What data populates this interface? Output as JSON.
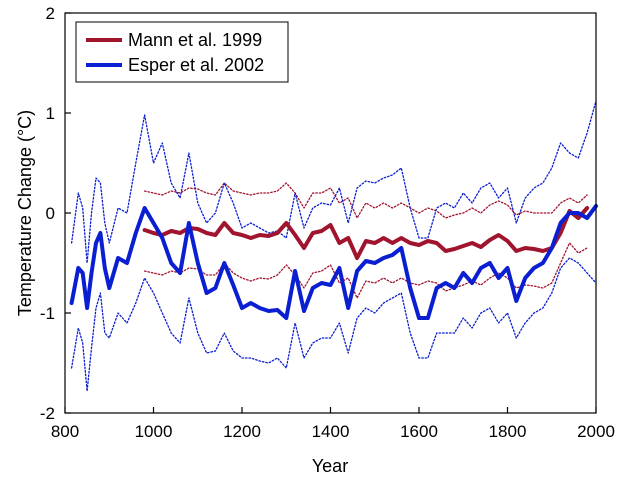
{
  "chart_data": {
    "type": "line",
    "xlabel": "Year",
    "ylabel": "Temperature Change (°C)",
    "xlim": [
      800,
      2000
    ],
    "ylim": [
      -2,
      2
    ],
    "x_ticks": [
      800,
      1000,
      1200,
      1400,
      1600,
      1800,
      2000
    ],
    "y_ticks": [
      -2,
      -1,
      0,
      1,
      2
    ],
    "grid": false,
    "legend_position": "top-left",
    "series": [
      {
        "name": "Mann et al. 1999",
        "color": "#a0142e",
        "style": "solid",
        "x": [
          980,
          1000,
          1020,
          1040,
          1060,
          1080,
          1100,
          1120,
          1140,
          1160,
          1180,
          1200,
          1220,
          1240,
          1260,
          1280,
          1300,
          1320,
          1340,
          1360,
          1380,
          1400,
          1420,
          1440,
          1460,
          1480,
          1500,
          1520,
          1540,
          1560,
          1580,
          1600,
          1620,
          1640,
          1660,
          1680,
          1700,
          1720,
          1740,
          1760,
          1780,
          1800,
          1820,
          1840,
          1860,
          1880,
          1900,
          1920,
          1940,
          1960,
          1980
        ],
        "y": [
          -0.17,
          -0.2,
          -0.22,
          -0.18,
          -0.2,
          -0.15,
          -0.16,
          -0.2,
          -0.22,
          -0.1,
          -0.2,
          -0.22,
          -0.25,
          -0.22,
          -0.23,
          -0.2,
          -0.1,
          -0.22,
          -0.35,
          -0.2,
          -0.18,
          -0.12,
          -0.3,
          -0.25,
          -0.45,
          -0.28,
          -0.3,
          -0.25,
          -0.3,
          -0.25,
          -0.3,
          -0.32,
          -0.28,
          -0.3,
          -0.38,
          -0.36,
          -0.33,
          -0.3,
          -0.34,
          -0.27,
          -0.22,
          -0.28,
          -0.38,
          -0.35,
          -0.36,
          -0.38,
          -0.35,
          -0.2,
          0.02,
          -0.05,
          0.05
        ]
      },
      {
        "name": "Esper et al. 2002",
        "color": "#0a1ed2",
        "style": "solid",
        "x": [
          815,
          830,
          840,
          850,
          860,
          870,
          880,
          890,
          900,
          920,
          940,
          960,
          980,
          1000,
          1020,
          1040,
          1060,
          1080,
          1100,
          1120,
          1140,
          1160,
          1180,
          1200,
          1220,
          1240,
          1260,
          1280,
          1300,
          1320,
          1340,
          1360,
          1380,
          1400,
          1420,
          1440,
          1460,
          1480,
          1500,
          1520,
          1540,
          1560,
          1580,
          1600,
          1620,
          1640,
          1660,
          1680,
          1700,
          1720,
          1740,
          1760,
          1780,
          1800,
          1820,
          1840,
          1860,
          1880,
          1900,
          1920,
          1940,
          1960,
          1980,
          2000
        ],
        "y": [
          -0.9,
          -0.55,
          -0.6,
          -0.95,
          -0.6,
          -0.3,
          -0.2,
          -0.55,
          -0.75,
          -0.45,
          -0.5,
          -0.2,
          0.05,
          -0.1,
          -0.25,
          -0.5,
          -0.6,
          -0.1,
          -0.5,
          -0.8,
          -0.75,
          -0.5,
          -0.72,
          -0.95,
          -0.9,
          -0.95,
          -0.98,
          -0.97,
          -1.05,
          -0.58,
          -0.98,
          -0.75,
          -0.7,
          -0.72,
          -0.55,
          -0.95,
          -0.58,
          -0.48,
          -0.5,
          -0.45,
          -0.42,
          -0.35,
          -0.75,
          -1.05,
          -1.05,
          -0.75,
          -0.7,
          -0.75,
          -0.6,
          -0.7,
          -0.55,
          -0.5,
          -0.65,
          -0.55,
          -0.88,
          -0.65,
          -0.55,
          -0.5,
          -0.35,
          -0.1,
          0.0,
          0.0,
          -0.05,
          0.07
        ]
      },
      {
        "name": "",
        "color": "#a0142e",
        "style": "dotted",
        "x": [
          980,
          1000,
          1020,
          1040,
          1060,
          1080,
          1100,
          1120,
          1140,
          1160,
          1180,
          1200,
          1220,
          1240,
          1260,
          1280,
          1300,
          1320,
          1340,
          1360,
          1380,
          1400,
          1420,
          1440,
          1460,
          1480,
          1500,
          1520,
          1540,
          1560,
          1580,
          1600,
          1620,
          1640,
          1660,
          1680,
          1700,
          1720,
          1740,
          1760,
          1780,
          1800,
          1820,
          1840,
          1860,
          1880,
          1900,
          1920,
          1940,
          1960,
          1980
        ],
        "y": [
          0.22,
          0.2,
          0.18,
          0.22,
          0.2,
          0.25,
          0.24,
          0.2,
          0.18,
          0.3,
          0.22,
          0.2,
          0.18,
          0.2,
          0.2,
          0.22,
          0.3,
          0.2,
          0.05,
          0.2,
          0.2,
          0.25,
          0.1,
          0.15,
          -0.05,
          0.1,
          0.05,
          0.1,
          0.05,
          0.1,
          0.05,
          0.0,
          0.05,
          0.02,
          -0.05,
          -0.02,
          0.0,
          0.05,
          0.0,
          0.08,
          0.12,
          0.08,
          -0.02,
          0.02,
          0.0,
          0.0,
          0.0,
          0.1,
          0.15,
          0.1,
          0.18
        ]
      },
      {
        "name": "",
        "color": "#a0142e",
        "style": "dotted",
        "x": [
          980,
          1000,
          1020,
          1040,
          1060,
          1080,
          1100,
          1120,
          1140,
          1160,
          1180,
          1200,
          1220,
          1240,
          1260,
          1280,
          1300,
          1320,
          1340,
          1360,
          1380,
          1400,
          1420,
          1440,
          1460,
          1480,
          1500,
          1520,
          1540,
          1560,
          1580,
          1600,
          1620,
          1640,
          1660,
          1680,
          1700,
          1720,
          1740,
          1760,
          1780,
          1800,
          1820,
          1840,
          1860,
          1880,
          1900,
          1920,
          1940,
          1960,
          1980
        ],
        "y": [
          -0.58,
          -0.6,
          -0.62,
          -0.58,
          -0.6,
          -0.55,
          -0.56,
          -0.62,
          -0.62,
          -0.5,
          -0.6,
          -0.65,
          -0.68,
          -0.65,
          -0.66,
          -0.62,
          -0.52,
          -0.62,
          -0.75,
          -0.6,
          -0.58,
          -0.52,
          -0.7,
          -0.65,
          -0.85,
          -0.68,
          -0.7,
          -0.65,
          -0.7,
          -0.65,
          -0.7,
          -0.72,
          -0.68,
          -0.7,
          -0.78,
          -0.75,
          -0.72,
          -0.68,
          -0.72,
          -0.65,
          -0.6,
          -0.65,
          -0.75,
          -0.72,
          -0.73,
          -0.75,
          -0.7,
          -0.5,
          -0.3,
          -0.4,
          -0.35
        ]
      },
      {
        "name": "",
        "color": "#0a1ed2",
        "style": "dotted",
        "x": [
          815,
          830,
          840,
          850,
          860,
          870,
          880,
          890,
          900,
          920,
          940,
          960,
          980,
          1000,
          1020,
          1040,
          1060,
          1080,
          1100,
          1120,
          1140,
          1160,
          1180,
          1200,
          1220,
          1240,
          1260,
          1280,
          1300,
          1320,
          1340,
          1360,
          1380,
          1400,
          1420,
          1440,
          1460,
          1480,
          1500,
          1520,
          1540,
          1560,
          1580,
          1600,
          1620,
          1640,
          1660,
          1680,
          1700,
          1720,
          1740,
          1760,
          1780,
          1800,
          1820,
          1840,
          1860,
          1880,
          1900,
          1920,
          1940,
          1960,
          1980,
          2000
        ],
        "y": [
          -0.3,
          0.2,
          0.05,
          -0.5,
          0.0,
          0.35,
          0.3,
          -0.1,
          -0.3,
          0.05,
          0.0,
          0.5,
          0.98,
          0.5,
          0.7,
          0.3,
          0.15,
          0.6,
          0.1,
          -0.1,
          0.0,
          0.3,
          0.1,
          -0.15,
          -0.1,
          -0.15,
          -0.2,
          -0.18,
          -0.25,
          0.2,
          -0.15,
          0.05,
          0.1,
          0.08,
          0.25,
          -0.1,
          0.25,
          0.32,
          0.3,
          0.35,
          0.38,
          0.45,
          0.05,
          -0.25,
          -0.25,
          0.05,
          0.1,
          0.05,
          0.2,
          0.1,
          0.25,
          0.3,
          0.15,
          0.25,
          -0.1,
          0.15,
          0.25,
          0.3,
          0.45,
          0.7,
          0.6,
          0.55,
          0.8,
          1.12
        ]
      },
      {
        "name": "",
        "color": "#0a1ed2",
        "style": "dotted",
        "x": [
          815,
          830,
          840,
          850,
          860,
          870,
          880,
          890,
          900,
          920,
          940,
          960,
          980,
          1000,
          1020,
          1040,
          1060,
          1080,
          1100,
          1120,
          1140,
          1160,
          1180,
          1200,
          1220,
          1240,
          1260,
          1280,
          1300,
          1320,
          1340,
          1360,
          1380,
          1400,
          1420,
          1440,
          1460,
          1480,
          1500,
          1520,
          1540,
          1560,
          1580,
          1600,
          1620,
          1640,
          1660,
          1680,
          1700,
          1720,
          1740,
          1760,
          1780,
          1800,
          1820,
          1840,
          1860,
          1880,
          1900,
          1920,
          1940,
          1960,
          1980,
          2000
        ],
        "y": [
          -1.55,
          -1.15,
          -1.3,
          -1.78,
          -1.35,
          -0.95,
          -0.8,
          -1.2,
          -1.25,
          -1.0,
          -1.1,
          -0.9,
          -0.65,
          -0.8,
          -1.0,
          -1.2,
          -1.3,
          -0.85,
          -1.2,
          -1.4,
          -1.38,
          -1.2,
          -1.38,
          -1.45,
          -1.45,
          -1.48,
          -1.5,
          -1.45,
          -1.55,
          -1.1,
          -1.45,
          -1.3,
          -1.25,
          -1.25,
          -1.1,
          -1.4,
          -1.05,
          -0.95,
          -1.0,
          -0.9,
          -0.85,
          -0.8,
          -1.2,
          -1.45,
          -1.45,
          -1.2,
          -1.2,
          -1.2,
          -1.05,
          -1.15,
          -1.0,
          -0.95,
          -1.1,
          -1.0,
          -1.25,
          -1.1,
          -1.0,
          -0.95,
          -0.8,
          -0.55,
          -0.45,
          -0.5,
          -0.6,
          -0.7
        ]
      }
    ]
  }
}
